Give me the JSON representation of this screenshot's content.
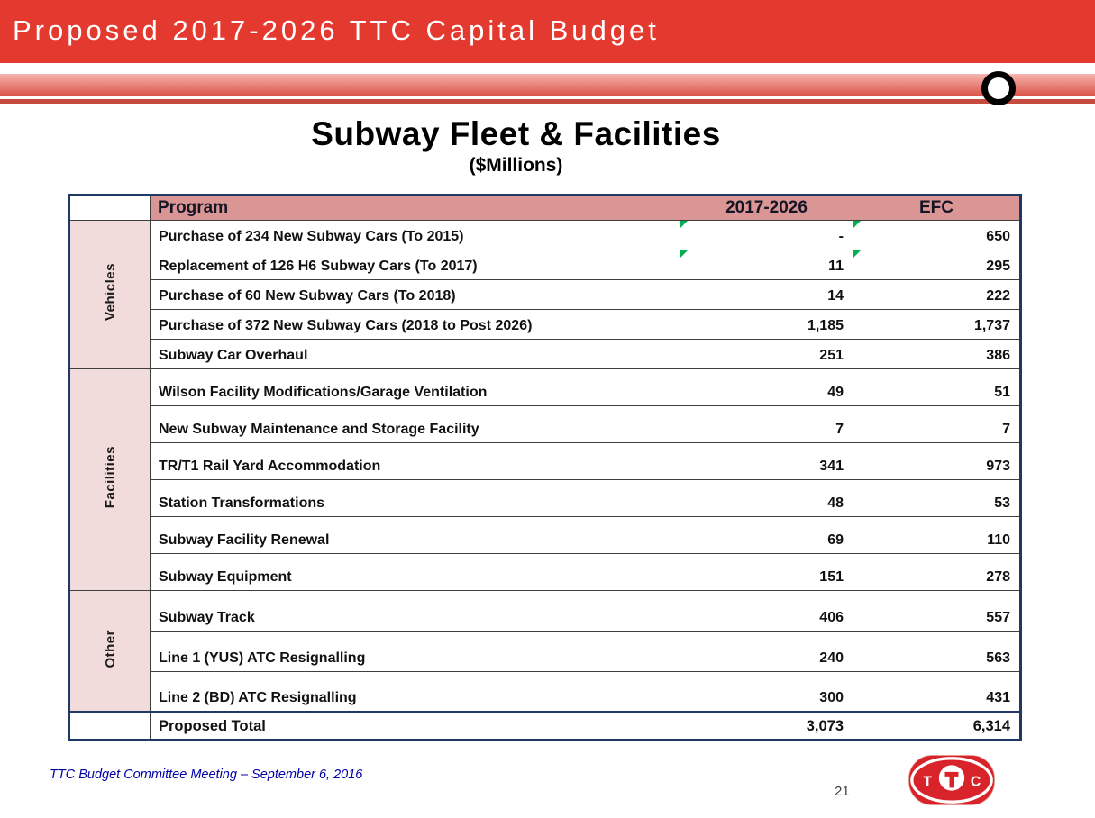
{
  "slide": {
    "banner_title": "Proposed 2017-2026 TTC Capital Budget",
    "title": "Subway Fleet & Facilities",
    "subtitle": "($Millions)",
    "footer": "TTC  Budget Committee  Meeting –   September 6, 2016",
    "page_number": "21",
    "logo_text": "T"
  },
  "colors": {
    "banner_red": "#E4392E",
    "header_fill": "#D99694",
    "group_fill": "#F2DCDB",
    "border_blue": "#1F3864",
    "marker_green": "#00B050",
    "footer_blue": "#0000A8",
    "logo_red": "#D8232A"
  },
  "table": {
    "headers": [
      "Program",
      "2017-2026",
      "EFC"
    ],
    "groups": [
      {
        "label": "Vehicles",
        "rows": [
          {
            "program": "Purchase of 234 New Subway Cars  (To 2015)",
            "budget": "-",
            "efc": "650",
            "marker": true
          },
          {
            "program": "Replacement of 126 H6 Subway Cars  (To 2017)",
            "budget": "11",
            "efc": "295",
            "marker": true
          },
          {
            "program": "Purchase of 60 New Subway Cars  (To 2018)",
            "budget": "14",
            "efc": "222",
            "marker": false
          },
          {
            "program": "Purchase of 372 New Subway Cars  (2018 to Post 2026)",
            "budget": "1,185",
            "efc": "1,737",
            "marker": false
          },
          {
            "program": "Subway Car Overhaul",
            "budget": "251",
            "efc": "386",
            "marker": false
          }
        ]
      },
      {
        "label": "Facilities",
        "rows": [
          {
            "program": "Wilson Facility Modifications/Garage Ventilation",
            "budget": "49",
            "efc": "51",
            "marker": false
          },
          {
            "program": "New Subway Maintenance and Storage Facility",
            "budget": "7",
            "efc": "7",
            "marker": false
          },
          {
            "program": "TR/T1 Rail Yard Accommodation",
            "budget": "341",
            "efc": "973",
            "marker": false
          },
          {
            "program": "Station Transformations",
            "budget": "48",
            "efc": "53",
            "marker": false
          },
          {
            "program": "Subway Facility Renewal",
            "budget": "69",
            "efc": "110",
            "marker": false
          },
          {
            "program": "Subway Equipment",
            "budget": "151",
            "efc": "278",
            "marker": false
          }
        ]
      },
      {
        "label": "Other",
        "rows": [
          {
            "program": "Subway Track",
            "budget": "406",
            "efc": "557",
            "marker": false
          },
          {
            "program": "Line 1 (YUS) ATC Resignalling",
            "budget": "240",
            "efc": "563",
            "marker": false
          },
          {
            "program": "Line 2 (BD) ATC Resignalling",
            "budget": "300",
            "efc": "431",
            "marker": false
          }
        ]
      }
    ],
    "total": {
      "label": "Proposed Total",
      "budget": "3,073",
      "efc": "6,314"
    }
  }
}
